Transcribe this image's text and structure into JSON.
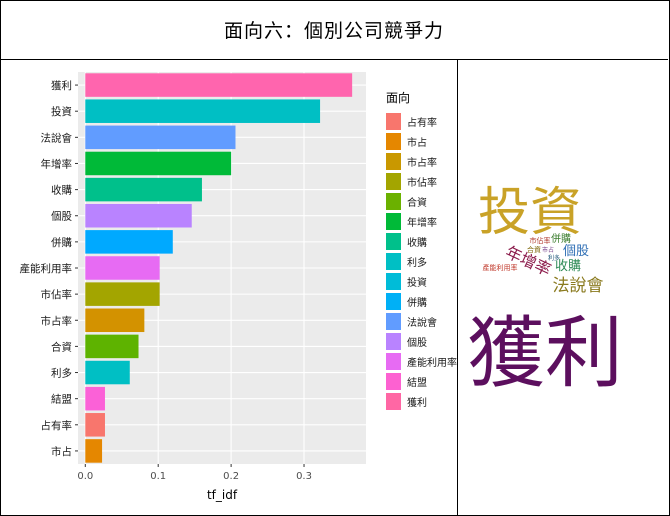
{
  "page_title": "面向六：個別公司競爭力",
  "chart_data": {
    "type": "bar",
    "orientation": "horizontal",
    "categories": [
      "獲利",
      "投資",
      "法說會",
      "年增率",
      "收購",
      "個股",
      "併購",
      "產能利用率",
      "市佔率",
      "市占率",
      "合資",
      "利多",
      "結盟",
      "占有率",
      "市占"
    ],
    "values": [
      0.366,
      0.322,
      0.206,
      0.2,
      0.16,
      0.146,
      0.12,
      0.102,
      0.102,
      0.081,
      0.073,
      0.061,
      0.027,
      0.027,
      0.023
    ],
    "colors": [
      "#FF65AE",
      "#00BFC4",
      "#619CFF",
      "#00BA38",
      "#00C08B",
      "#B983FF",
      "#00A9FF",
      "#E76BF3",
      "#A3A500",
      "#D39200",
      "#5EB300",
      "#00BFC4",
      "#FB61D7",
      "#F8766D",
      "#E58700"
    ],
    "xlabel": "tf_idf",
    "ylabel": "",
    "xlim": [
      -0.01,
      0.385
    ],
    "xticks": [
      0.0,
      0.1,
      0.2,
      0.3
    ],
    "xtick_labels": [
      "0.0",
      "0.1",
      "0.2",
      "0.3"
    ],
    "grid": true,
    "legend": {
      "title": "面向",
      "placement": "right",
      "entries": [
        {
          "label": "占有率",
          "color": "#F8766D"
        },
        {
          "label": "市占",
          "color": "#E58700"
        },
        {
          "label": "市占率",
          "color": "#C99800"
        },
        {
          "label": "市佔率",
          "color": "#A3A500"
        },
        {
          "label": "合資",
          "color": "#6BB100"
        },
        {
          "label": "年增率",
          "color": "#00BA38"
        },
        {
          "label": "收購",
          "color": "#00C08B"
        },
        {
          "label": "利多",
          "color": "#00BFC4"
        },
        {
          "label": "投資",
          "color": "#00BCD8"
        },
        {
          "label": "併購",
          "color": "#00B0F6"
        },
        {
          "label": "法說會",
          "color": "#619CFF"
        },
        {
          "label": "個股",
          "color": "#B983FF"
        },
        {
          "label": "產能利用率",
          "color": "#E76BF3"
        },
        {
          "label": "結盟",
          "color": "#FD61D1"
        },
        {
          "label": "獲利",
          "color": "#FF67A4"
        }
      ]
    }
  },
  "word_cloud": {
    "words": [
      {
        "text": "獲利",
        "color": "#5C0F5E"
      },
      {
        "text": "投資",
        "color": "#C9A227"
      },
      {
        "text": "法說會",
        "color": "#8A7A1E"
      },
      {
        "text": "年增率",
        "color": "#8B1A4A"
      },
      {
        "text": "收購",
        "color": "#2E8B57"
      },
      {
        "text": "個股",
        "color": "#2F6FB5"
      },
      {
        "text": "併購",
        "color": "#3B7D2E"
      },
      {
        "text": "市佔率",
        "color": "#B03A2E"
      },
      {
        "text": "產能利用率",
        "color": "#C0392B"
      },
      {
        "text": "合資",
        "color": "#7D6608"
      },
      {
        "text": "市占",
        "color": "#6C3483"
      },
      {
        "text": "利多",
        "color": "#1A5276"
      }
    ]
  }
}
